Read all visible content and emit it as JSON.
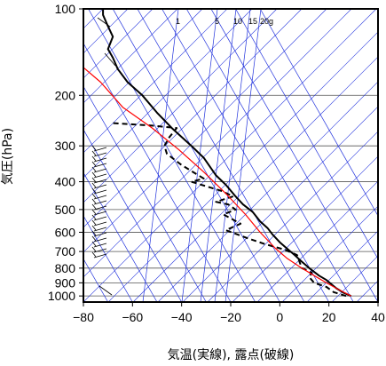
{
  "chart_data": {
    "type": "line",
    "xlabel": "気温(実線), 露点(破線)",
    "ylabel": "気圧(hPa)",
    "xlim": [
      -80,
      40
    ],
    "ylim": [
      1050,
      100
    ],
    "yscale": "log",
    "x_ticks": [
      "−80",
      "−60",
      "−40",
      "−20",
      "0",
      "20",
      "40"
    ],
    "x_tick_values": [
      -80,
      -60,
      -40,
      -20,
      0,
      20,
      40
    ],
    "y_ticks": [
      "100",
      "200",
      "300",
      "400",
      "500",
      "600",
      "700",
      "800",
      "900",
      "1000"
    ],
    "y_tick_values": [
      100,
      200,
      300,
      400,
      500,
      600,
      700,
      800,
      900,
      1000
    ],
    "mixing_ratio_labels": [
      "1",
      "5",
      "10",
      "15",
      "20",
      "g"
    ],
    "mixing_ratio_values": [
      1,
      5,
      10,
      15,
      20
    ],
    "series": [
      {
        "style": "solid",
        "color": "#000000",
        "points": [
          [
            29,
            1000
          ],
          [
            26,
            975
          ],
          [
            23,
            940
          ],
          [
            21,
            910
          ],
          [
            19,
            880
          ],
          [
            16,
            850
          ],
          [
            12,
            800
          ],
          [
            9,
            760
          ],
          [
            6,
            720
          ],
          [
            3.5,
            690
          ],
          [
            0,
            650
          ],
          [
            -3,
            610
          ],
          [
            -5,
            580
          ],
          [
            -8,
            550
          ],
          [
            -11,
            510
          ],
          [
            -15,
            480
          ],
          [
            -18,
            450
          ],
          [
            -22,
            410
          ],
          [
            -26,
            380
          ],
          [
            -31,
            330
          ],
          [
            -36,
            300
          ],
          [
            -44,
            260
          ],
          [
            -50,
            230
          ],
          [
            -56,
            200
          ],
          [
            -62,
            180
          ],
          [
            -66,
            162
          ],
          [
            -68,
            148
          ],
          [
            -70,
            138
          ],
          [
            -68,
            125
          ],
          [
            -70,
            115
          ],
          [
            -72,
            105
          ],
          [
            -72,
            100
          ]
        ]
      },
      {
        "style": "dashed",
        "color": "#000000",
        "points": [
          [
            27,
            1000
          ],
          [
            22,
            970
          ],
          [
            19,
            930
          ],
          [
            14,
            900
          ],
          [
            12,
            860
          ],
          [
            13,
            830
          ],
          [
            9,
            800
          ],
          [
            8,
            760
          ],
          [
            7,
            720
          ],
          [
            2,
            690
          ],
          [
            -6,
            660
          ],
          [
            -13,
            630
          ],
          [
            -22,
            590
          ],
          [
            -16,
            560
          ],
          [
            -23,
            520
          ],
          [
            -18,
            500
          ],
          [
            -21,
            480
          ],
          [
            -26,
            470
          ],
          [
            -19,
            450
          ],
          [
            -24,
            430
          ],
          [
            -36,
            400
          ],
          [
            -31,
            390
          ],
          [
            -40,
            350
          ],
          [
            -46,
            320
          ],
          [
            -47,
            300
          ],
          [
            -45,
            280
          ],
          [
            -42,
            260
          ],
          [
            -52,
            255
          ],
          [
            -68,
            250
          ]
        ]
      },
      {
        "style": "solid",
        "color": "#ff0000",
        "points": [
          [
            29,
            1000
          ],
          [
            24,
            950
          ],
          [
            19,
            900
          ],
          [
            14,
            850
          ],
          [
            8,
            790
          ],
          [
            3,
            740
          ],
          [
            -2,
            680
          ],
          [
            -8,
            600
          ],
          [
            -14,
            520
          ],
          [
            -22,
            440
          ],
          [
            -31,
            370
          ],
          [
            -41,
            310
          ],
          [
            -52,
            260
          ],
          [
            -64,
            220
          ],
          [
            -73,
            180
          ],
          [
            -80,
            160
          ]
        ]
      }
    ]
  }
}
